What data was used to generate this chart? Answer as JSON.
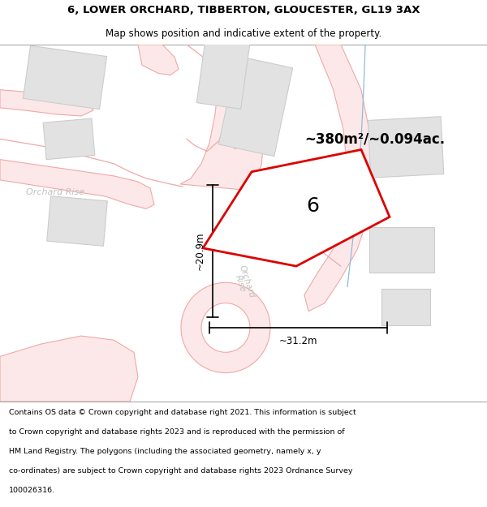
{
  "title_line1": "6, LOWER ORCHARD, TIBBERTON, GLOUCESTER, GL19 3AX",
  "title_line2": "Map shows position and indicative extent of the property.",
  "area_text": "~380m²/~0.094ac.",
  "label_number": "6",
  "dim_vertical": "~20.9m",
  "dim_horizontal": "~31.2m",
  "footer_lines": [
    "Contains OS data © Crown copyright and database right 2021. This information is subject",
    "to Crown copyright and database rights 2023 and is reproduced with the permission of",
    "HM Land Registry. The polygons (including the associated geometry, namely x, y",
    "co-ordinates) are subject to Crown copyright and database rights 2023 Ordnance Survey",
    "100026316."
  ],
  "bg_color": "#ffffff",
  "map_bg": "#ffffff",
  "road_color": "#f0a8a8",
  "road_fill": "#fce8e8",
  "parcel_outline": "#dd0000",
  "parcel_fill": "#ffffff",
  "building_fill": "#e2e2e2",
  "building_outline": "#cccccc",
  "footer_bg": "#ffffff",
  "text_color": "#000000",
  "label_color": "#bbbbbb",
  "blue_line_color": "#90bcd8",
  "dim_color": "#000000",
  "title_sep_color": "#aaaaaa"
}
